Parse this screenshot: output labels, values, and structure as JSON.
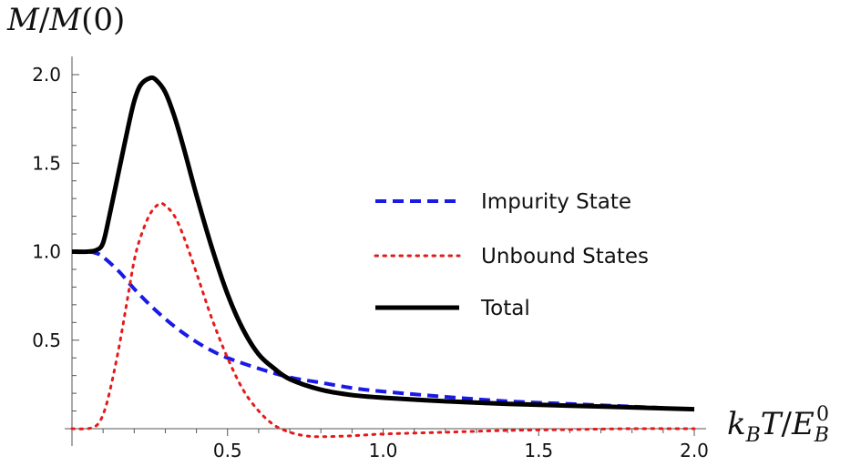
{
  "chart_data": {
    "type": "line",
    "ylabel": "M/M(0)",
    "xlabel": "k_B T/E_B^0",
    "xlim": [
      0.0,
      2.0
    ],
    "ylim": [
      -0.1,
      2.1
    ],
    "x_ticks": [
      0.5,
      1.0,
      1.5,
      2.0
    ],
    "x_tick_labels": [
      "0.5",
      "1.0",
      "1.5",
      "2.0"
    ],
    "y_ticks": [
      0.5,
      1.0,
      1.5,
      2.0
    ],
    "y_tick_labels": [
      "0.5",
      "1.0",
      "1.5",
      "2.0"
    ],
    "grid": false,
    "legend_position": "center-right",
    "series": [
      {
        "name": "Impurity State",
        "color": "#1a1ae6",
        "style": "dashed",
        "x": [
          0.0,
          0.05,
          0.08,
          0.1,
          0.15,
          0.2,
          0.25,
          0.3,
          0.35,
          0.4,
          0.45,
          0.5,
          0.6,
          0.7,
          0.8,
          0.9,
          1.0,
          1.2,
          1.4,
          1.6,
          1.8,
          2.0
        ],
        "y": [
          1.0,
          1.0,
          0.99,
          0.97,
          0.89,
          0.79,
          0.7,
          0.62,
          0.55,
          0.49,
          0.44,
          0.4,
          0.34,
          0.29,
          0.26,
          0.23,
          0.21,
          0.18,
          0.155,
          0.14,
          0.125,
          0.11
        ]
      },
      {
        "name": "Unbound States",
        "color": "#e61a1a",
        "style": "dotted",
        "x": [
          0.0,
          0.05,
          0.08,
          0.1,
          0.12,
          0.15,
          0.18,
          0.2,
          0.22,
          0.25,
          0.28,
          0.3,
          0.33,
          0.36,
          0.4,
          0.45,
          0.5,
          0.55,
          0.6,
          0.65,
          0.7,
          0.75,
          0.8,
          0.9,
          1.0,
          1.2,
          1.4,
          1.6,
          1.8,
          2.0
        ],
        "y": [
          0.0,
          0.0,
          0.02,
          0.08,
          0.2,
          0.45,
          0.75,
          0.95,
          1.08,
          1.21,
          1.27,
          1.26,
          1.2,
          1.08,
          0.88,
          0.62,
          0.4,
          0.22,
          0.1,
          0.02,
          -0.02,
          -0.04,
          -0.045,
          -0.04,
          -0.03,
          -0.02,
          -0.01,
          -0.005,
          0.0,
          0.0
        ]
      },
      {
        "name": "Total",
        "color": "#000000",
        "style": "solid",
        "x": [
          0.0,
          0.05,
          0.08,
          0.1,
          0.12,
          0.15,
          0.18,
          0.2,
          0.22,
          0.25,
          0.27,
          0.3,
          0.33,
          0.36,
          0.4,
          0.45,
          0.5,
          0.55,
          0.6,
          0.65,
          0.7,
          0.8,
          0.9,
          1.0,
          1.2,
          1.4,
          1.6,
          1.8,
          2.0
        ],
        "y": [
          1.0,
          1.0,
          1.01,
          1.05,
          1.2,
          1.45,
          1.7,
          1.85,
          1.94,
          1.98,
          1.97,
          1.9,
          1.76,
          1.58,
          1.32,
          1.02,
          0.76,
          0.56,
          0.42,
          0.34,
          0.28,
          0.22,
          0.19,
          0.175,
          0.155,
          0.14,
          0.13,
          0.12,
          0.11
        ]
      }
    ]
  }
}
